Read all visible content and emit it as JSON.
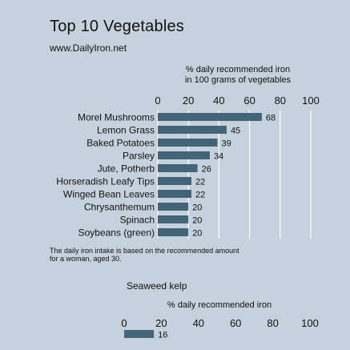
{
  "page": {
    "title": "Top 10 Vegetables",
    "source": "www.DailyIron.net",
    "note": "The daily iron intake is based on the recommended amount for a woman, aged 30.",
    "bar_color": "#446577",
    "grid_color": "#ffffff",
    "background": "#c5d1dc"
  },
  "chart_data": [
    {
      "type": "bar",
      "orientation": "horizontal",
      "title": "",
      "xlabel": "% daily recommended iron\nin 100 grams of vegetables",
      "ylabel": "",
      "xlim": [
        0,
        100
      ],
      "ticks": [
        0,
        20,
        40,
        60,
        80,
        100
      ],
      "grid": true,
      "categories": [
        "Morel Mushrooms",
        "Lemon Grass",
        "Baked Potatoes",
        "Parsley",
        "Jute, Potherb",
        "Horseradish Leafy Tips",
        "Winged Bean Leaves",
        "Chrysanthemum",
        "Spinach",
        "Soybeans (green)"
      ],
      "values": [
        68,
        45,
        39,
        34,
        26,
        22,
        22,
        20,
        20,
        20
      ]
    },
    {
      "type": "bar",
      "orientation": "horizontal",
      "title": "Seaweed kelp",
      "xlabel": "% daily recommended iron",
      "ylabel": "",
      "xlim": [
        0,
        100
      ],
      "ticks": [
        0,
        20,
        40,
        60,
        80,
        100
      ],
      "grid": false,
      "categories": [
        ""
      ],
      "values": [
        16
      ]
    }
  ]
}
